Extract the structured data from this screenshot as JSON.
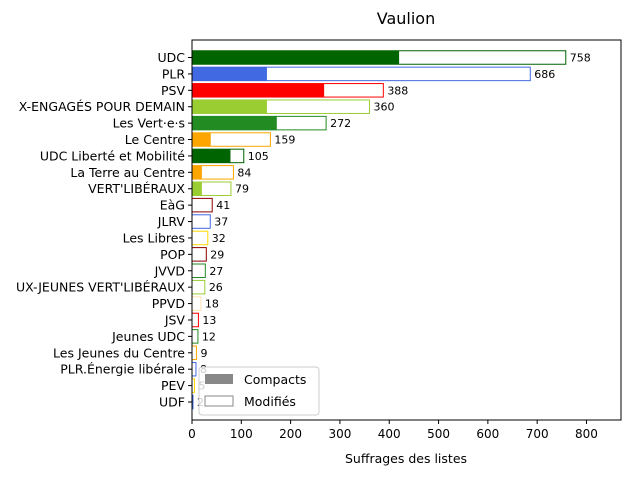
{
  "chart_data": {
    "type": "bar",
    "orientation": "horizontal",
    "title": "Vaulion",
    "xlabel": "Suffrages des listes",
    "ylabel": "",
    "xlim": [
      0,
      870
    ],
    "xticks": [
      "0",
      "100",
      "200",
      "300",
      "400",
      "500",
      "600",
      "700",
      "800"
    ],
    "grid": false,
    "legend_position": "lower-left",
    "legend": [
      {
        "label": "Compacts",
        "style": "filled",
        "color": "#888888"
      },
      {
        "label": "Modifiés",
        "style": "outline",
        "color": "#888888"
      }
    ],
    "categories": [
      "UDC",
      "PLR",
      "PSV",
      "X-ENGAGÉS POUR DEMAIN",
      "Les Vert·e·s",
      "Le Centre",
      "UDC Liberté et Mobilité",
      "La Terre au Centre",
      "VERT'LIBÉRAUX",
      "EàG",
      "JLRV",
      "Les Libres",
      "POP",
      "JVVD",
      "UX-JEUNES VERT'LIBÉRAUX",
      "PPVD",
      "JSV",
      "Jeunes UDC",
      "Les Jeunes du Centre",
      "PLR.Énergie libérale",
      "PEV",
      "UDF"
    ],
    "totals": [
      758,
      686,
      388,
      360,
      272,
      159,
      105,
      84,
      79,
      41,
      37,
      32,
      29,
      27,
      26,
      18,
      13,
      12,
      9,
      8,
      5,
      2
    ],
    "compacts": [
      420,
      152,
      268,
      152,
      172,
      38,
      78,
      20,
      20,
      0,
      0,
      0,
      0,
      0,
      0,
      0,
      0,
      0,
      0,
      0,
      0,
      0
    ],
    "total_labels": [
      "758",
      "686",
      "388",
      "360",
      "272",
      "159",
      "105",
      "84",
      "79",
      "41",
      "37",
      "32",
      "29",
      "27",
      "26",
      "18",
      "13",
      "12",
      "9",
      "8",
      "5",
      "2"
    ],
    "colors": [
      "#006400",
      "#4169e1",
      "#ff0000",
      "#9acd32",
      "#228b22",
      "#ffa500",
      "#006400",
      "#ffa500",
      "#9acd32",
      "#8b0000",
      "#4169e1",
      "#ffd700",
      "#8b0000",
      "#228b22",
      "#9acd32",
      "#ffe4b5",
      "#ff0000",
      "#228b22",
      "#ffa500",
      "#4169e1",
      "#ffd700",
      "#4169e1"
    ]
  }
}
